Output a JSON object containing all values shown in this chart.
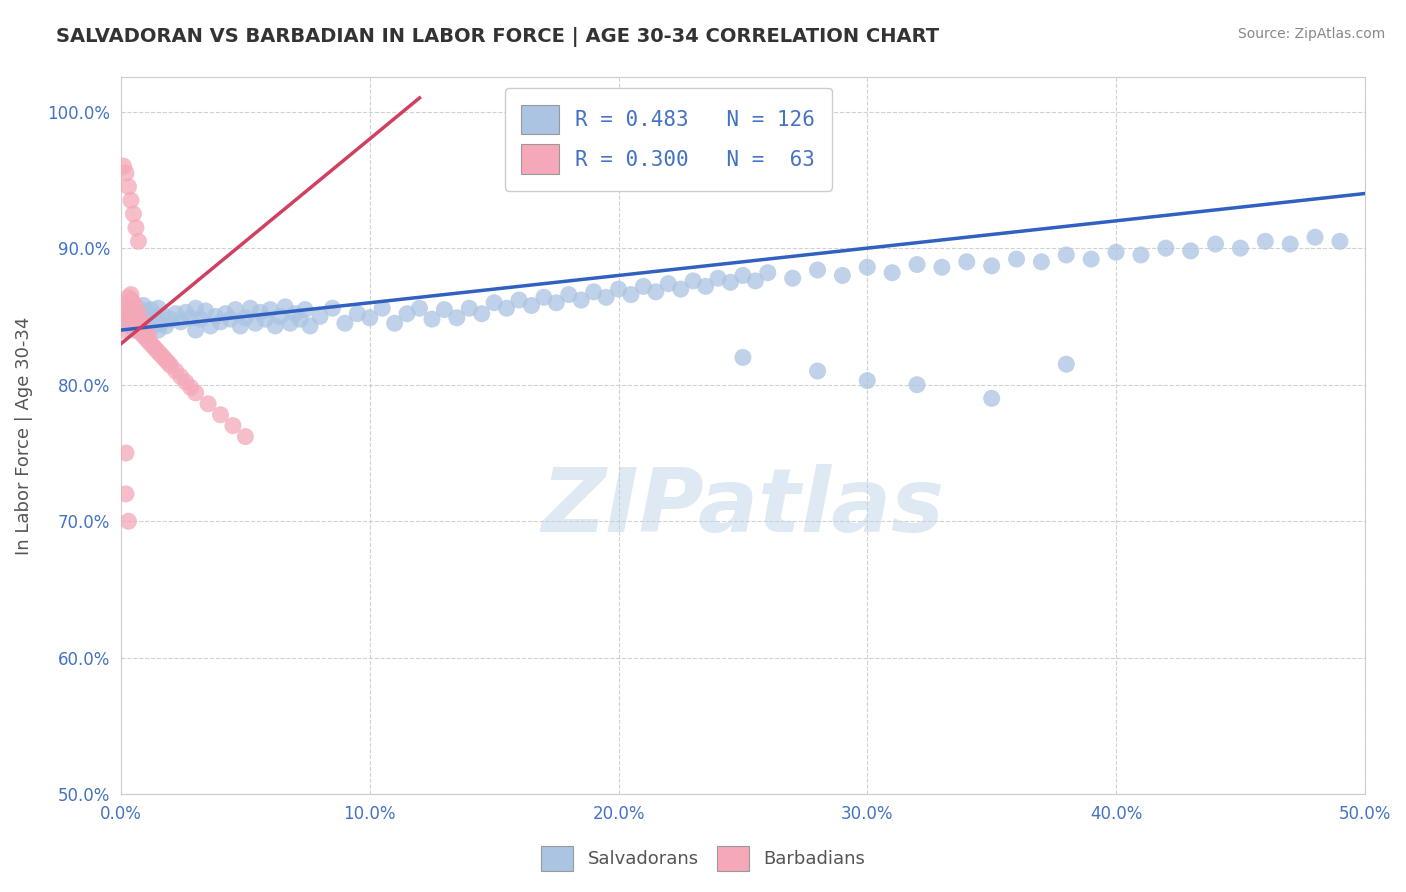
{
  "title": "SALVADORAN VS BARBADIAN IN LABOR FORCE | AGE 30-34 CORRELATION CHART",
  "source_text": "Source: ZipAtlas.com",
  "ylabel": "In Labor Force | Age 30-34",
  "xlim": [
    0.0,
    0.5
  ],
  "ylim": [
    0.5,
    1.025
  ],
  "xtick_labels": [
    "0.0%",
    "10.0%",
    "20.0%",
    "30.0%",
    "40.0%",
    "50.0%"
  ],
  "xtick_vals": [
    0.0,
    0.1,
    0.2,
    0.3,
    0.4,
    0.5
  ],
  "ytick_labels": [
    "50.0%",
    "60.0%",
    "70.0%",
    "80.0%",
    "90.0%",
    "100.0%"
  ],
  "ytick_vals": [
    0.5,
    0.6,
    0.7,
    0.8,
    0.9,
    1.0
  ],
  "R_blue": 0.483,
  "N_blue": 126,
  "R_pink": 0.3,
  "N_pink": 63,
  "blue_color": "#aac4e2",
  "pink_color": "#f4a8b8",
  "blue_line_color": "#3060c0",
  "pink_line_color": "#d04060",
  "legend_blue_label": "Salvadorans",
  "legend_pink_label": "Barbadians",
  "watermark": "ZIPatlas",
  "background_color": "#ffffff",
  "grid_color": "#cccccc",
  "blue_scatter_x": [
    0.001,
    0.002,
    0.003,
    0.003,
    0.004,
    0.004,
    0.005,
    0.005,
    0.005,
    0.006,
    0.006,
    0.007,
    0.007,
    0.008,
    0.008,
    0.009,
    0.009,
    0.01,
    0.01,
    0.01,
    0.011,
    0.012,
    0.012,
    0.013,
    0.014,
    0.015,
    0.015,
    0.016,
    0.017,
    0.018,
    0.02,
    0.022,
    0.024,
    0.026,
    0.028,
    0.03,
    0.03,
    0.032,
    0.034,
    0.036,
    0.038,
    0.04,
    0.042,
    0.044,
    0.046,
    0.048,
    0.05,
    0.052,
    0.054,
    0.056,
    0.058,
    0.06,
    0.062,
    0.064,
    0.066,
    0.068,
    0.07,
    0.072,
    0.074,
    0.076,
    0.08,
    0.085,
    0.09,
    0.095,
    0.1,
    0.105,
    0.11,
    0.115,
    0.12,
    0.125,
    0.13,
    0.135,
    0.14,
    0.145,
    0.15,
    0.155,
    0.16,
    0.165,
    0.17,
    0.175,
    0.18,
    0.185,
    0.19,
    0.195,
    0.2,
    0.205,
    0.21,
    0.215,
    0.22,
    0.225,
    0.23,
    0.235,
    0.24,
    0.245,
    0.25,
    0.255,
    0.26,
    0.27,
    0.28,
    0.29,
    0.3,
    0.31,
    0.32,
    0.33,
    0.34,
    0.35,
    0.36,
    0.37,
    0.38,
    0.39,
    0.4,
    0.41,
    0.42,
    0.43,
    0.44,
    0.45,
    0.46,
    0.47,
    0.48,
    0.49,
    0.25,
    0.28,
    0.3,
    0.32,
    0.35,
    0.38
  ],
  "blue_scatter_y": [
    0.845,
    0.85,
    0.848,
    0.852,
    0.843,
    0.855,
    0.84,
    0.846,
    0.853,
    0.842,
    0.849,
    0.841,
    0.856,
    0.839,
    0.852,
    0.844,
    0.858,
    0.837,
    0.847,
    0.854,
    0.842,
    0.848,
    0.855,
    0.843,
    0.85,
    0.84,
    0.856,
    0.845,
    0.851,
    0.843,
    0.848,
    0.852,
    0.846,
    0.853,
    0.849,
    0.84,
    0.856,
    0.848,
    0.854,
    0.843,
    0.85,
    0.846,
    0.852,
    0.848,
    0.855,
    0.843,
    0.849,
    0.856,
    0.845,
    0.853,
    0.848,
    0.855,
    0.843,
    0.85,
    0.857,
    0.845,
    0.852,
    0.848,
    0.855,
    0.843,
    0.85,
    0.856,
    0.845,
    0.852,
    0.849,
    0.856,
    0.845,
    0.852,
    0.856,
    0.848,
    0.855,
    0.849,
    0.856,
    0.852,
    0.86,
    0.856,
    0.862,
    0.858,
    0.864,
    0.86,
    0.866,
    0.862,
    0.868,
    0.864,
    0.87,
    0.866,
    0.872,
    0.868,
    0.874,
    0.87,
    0.876,
    0.872,
    0.878,
    0.875,
    0.88,
    0.876,
    0.882,
    0.878,
    0.884,
    0.88,
    0.886,
    0.882,
    0.888,
    0.886,
    0.89,
    0.887,
    0.892,
    0.89,
    0.895,
    0.892,
    0.897,
    0.895,
    0.9,
    0.898,
    0.903,
    0.9,
    0.905,
    0.903,
    0.908,
    0.905,
    0.82,
    0.81,
    0.803,
    0.8,
    0.79,
    0.815
  ],
  "pink_scatter_x": [
    0.001,
    0.001,
    0.002,
    0.002,
    0.002,
    0.003,
    0.003,
    0.003,
    0.003,
    0.004,
    0.004,
    0.004,
    0.004,
    0.004,
    0.005,
    0.005,
    0.005,
    0.005,
    0.006,
    0.006,
    0.006,
    0.006,
    0.007,
    0.007,
    0.007,
    0.007,
    0.008,
    0.008,
    0.008,
    0.009,
    0.009,
    0.01,
    0.01,
    0.011,
    0.011,
    0.012,
    0.013,
    0.014,
    0.015,
    0.016,
    0.017,
    0.018,
    0.019,
    0.02,
    0.022,
    0.024,
    0.026,
    0.028,
    0.03,
    0.035,
    0.04,
    0.045,
    0.05,
    0.001,
    0.002,
    0.003,
    0.004,
    0.005,
    0.006,
    0.007,
    0.002,
    0.002,
    0.003
  ],
  "pink_scatter_y": [
    0.84,
    0.85,
    0.855,
    0.858,
    0.86,
    0.852,
    0.856,
    0.86,
    0.864,
    0.85,
    0.854,
    0.858,
    0.862,
    0.866,
    0.848,
    0.852,
    0.856,
    0.86,
    0.844,
    0.848,
    0.852,
    0.856,
    0.84,
    0.844,
    0.848,
    0.852,
    0.838,
    0.842,
    0.846,
    0.836,
    0.84,
    0.834,
    0.838,
    0.832,
    0.836,
    0.83,
    0.828,
    0.826,
    0.824,
    0.822,
    0.82,
    0.818,
    0.816,
    0.814,
    0.81,
    0.806,
    0.802,
    0.798,
    0.794,
    0.786,
    0.778,
    0.77,
    0.762,
    0.96,
    0.955,
    0.945,
    0.935,
    0.925,
    0.915,
    0.905,
    0.75,
    0.72,
    0.7
  ],
  "pink_line_x0": 0.0,
  "pink_line_y0": 0.83,
  "pink_line_x1": 0.12,
  "pink_line_y1": 1.01,
  "blue_line_x0": 0.0,
  "blue_line_y0": 0.84,
  "blue_line_x1": 0.5,
  "blue_line_y1": 0.94
}
